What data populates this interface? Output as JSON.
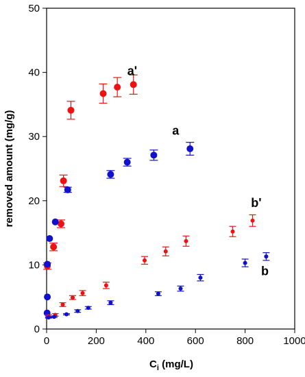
{
  "chart_data": {
    "type": "scatter",
    "xlabel": "C",
    "xlabel_sub": "i",
    "xlabel_unit": " (mg/L)",
    "ylabel": "removed amount (mg/g)",
    "xlim": [
      0,
      1000
    ],
    "ylim": [
      0,
      50
    ],
    "xticks": [
      0,
      200,
      400,
      600,
      800,
      1000
    ],
    "yticks": [
      0,
      10,
      20,
      30,
      40,
      50
    ],
    "grid": false,
    "series": [
      {
        "name": "a'",
        "color": "#ee1111",
        "marker": "large",
        "points": [
          {
            "x": 3,
            "y": 9.8,
            "err": 0.5
          },
          {
            "x": 28,
            "y": 12.8,
            "err": 0.6
          },
          {
            "x": 58,
            "y": 16.4,
            "err": 0.6
          },
          {
            "x": 68,
            "y": 23.1,
            "err": 0.9
          },
          {
            "x": 98,
            "y": 34.1,
            "err": 1.4
          },
          {
            "x": 228,
            "y": 36.7,
            "err": 1.5
          },
          {
            "x": 285,
            "y": 37.7,
            "err": 1.5
          },
          {
            "x": 350,
            "y": 38.1,
            "err": 1.5
          }
        ]
      },
      {
        "name": "a",
        "color": "#1111cc",
        "marker": "large",
        "points": [
          {
            "x": 2,
            "y": 2.5,
            "err": 0
          },
          {
            "x": 3,
            "y": 5.0,
            "err": 0
          },
          {
            "x": 3,
            "y": 10.1,
            "err": 0
          },
          {
            "x": 12,
            "y": 14.1,
            "err": 0
          },
          {
            "x": 35,
            "y": 16.7,
            "err": 0
          },
          {
            "x": 85,
            "y": 21.7,
            "err": 0.4
          },
          {
            "x": 258,
            "y": 24.1,
            "err": 0.6
          },
          {
            "x": 325,
            "y": 26.0,
            "err": 0.6
          },
          {
            "x": 432,
            "y": 27.1,
            "err": 0.8
          },
          {
            "x": 578,
            "y": 28.1,
            "err": 1.0
          }
        ]
      },
      {
        "name": "b'",
        "color": "#ee1111",
        "marker": "small",
        "points": [
          {
            "x": 8,
            "y": 2.0,
            "err": 0.2
          },
          {
            "x": 35,
            "y": 2.2,
            "err": 0.2
          },
          {
            "x": 65,
            "y": 3.8,
            "err": 0.3
          },
          {
            "x": 105,
            "y": 4.9,
            "err": 0.3
          },
          {
            "x": 145,
            "y": 5.6,
            "err": 0.4
          },
          {
            "x": 240,
            "y": 6.8,
            "err": 0.5
          },
          {
            "x": 395,
            "y": 10.7,
            "err": 0.6
          },
          {
            "x": 480,
            "y": 12.1,
            "err": 0.7
          },
          {
            "x": 562,
            "y": 13.7,
            "err": 0.8
          },
          {
            "x": 750,
            "y": 15.2,
            "err": 0.8
          },
          {
            "x": 830,
            "y": 16.9,
            "err": 0.9
          }
        ]
      },
      {
        "name": "b",
        "color": "#1111cc",
        "marker": "small",
        "points": [
          {
            "x": 8,
            "y": 1.8,
            "err": 0.1
          },
          {
            "x": 30,
            "y": 1.9,
            "err": 0.1
          },
          {
            "x": 80,
            "y": 2.3,
            "err": 0.1
          },
          {
            "x": 125,
            "y": 2.8,
            "err": 0.2
          },
          {
            "x": 168,
            "y": 3.3,
            "err": 0.2
          },
          {
            "x": 258,
            "y": 4.1,
            "err": 0.3
          },
          {
            "x": 450,
            "y": 5.5,
            "err": 0.3
          },
          {
            "x": 540,
            "y": 6.3,
            "err": 0.4
          },
          {
            "x": 620,
            "y": 8.0,
            "err": 0.5
          },
          {
            "x": 800,
            "y": 10.3,
            "err": 0.6
          },
          {
            "x": 885,
            "y": 11.3,
            "err": 0.6
          }
        ]
      }
    ],
    "annotations": [
      {
        "text": "a'",
        "x": 345,
        "y": 39.6
      },
      {
        "text": "a",
        "x": 520,
        "y": 30.3
      },
      {
        "text": "b'",
        "x": 845,
        "y": 19.0
      },
      {
        "text": "b",
        "x": 880,
        "y": 8.4
      }
    ]
  }
}
